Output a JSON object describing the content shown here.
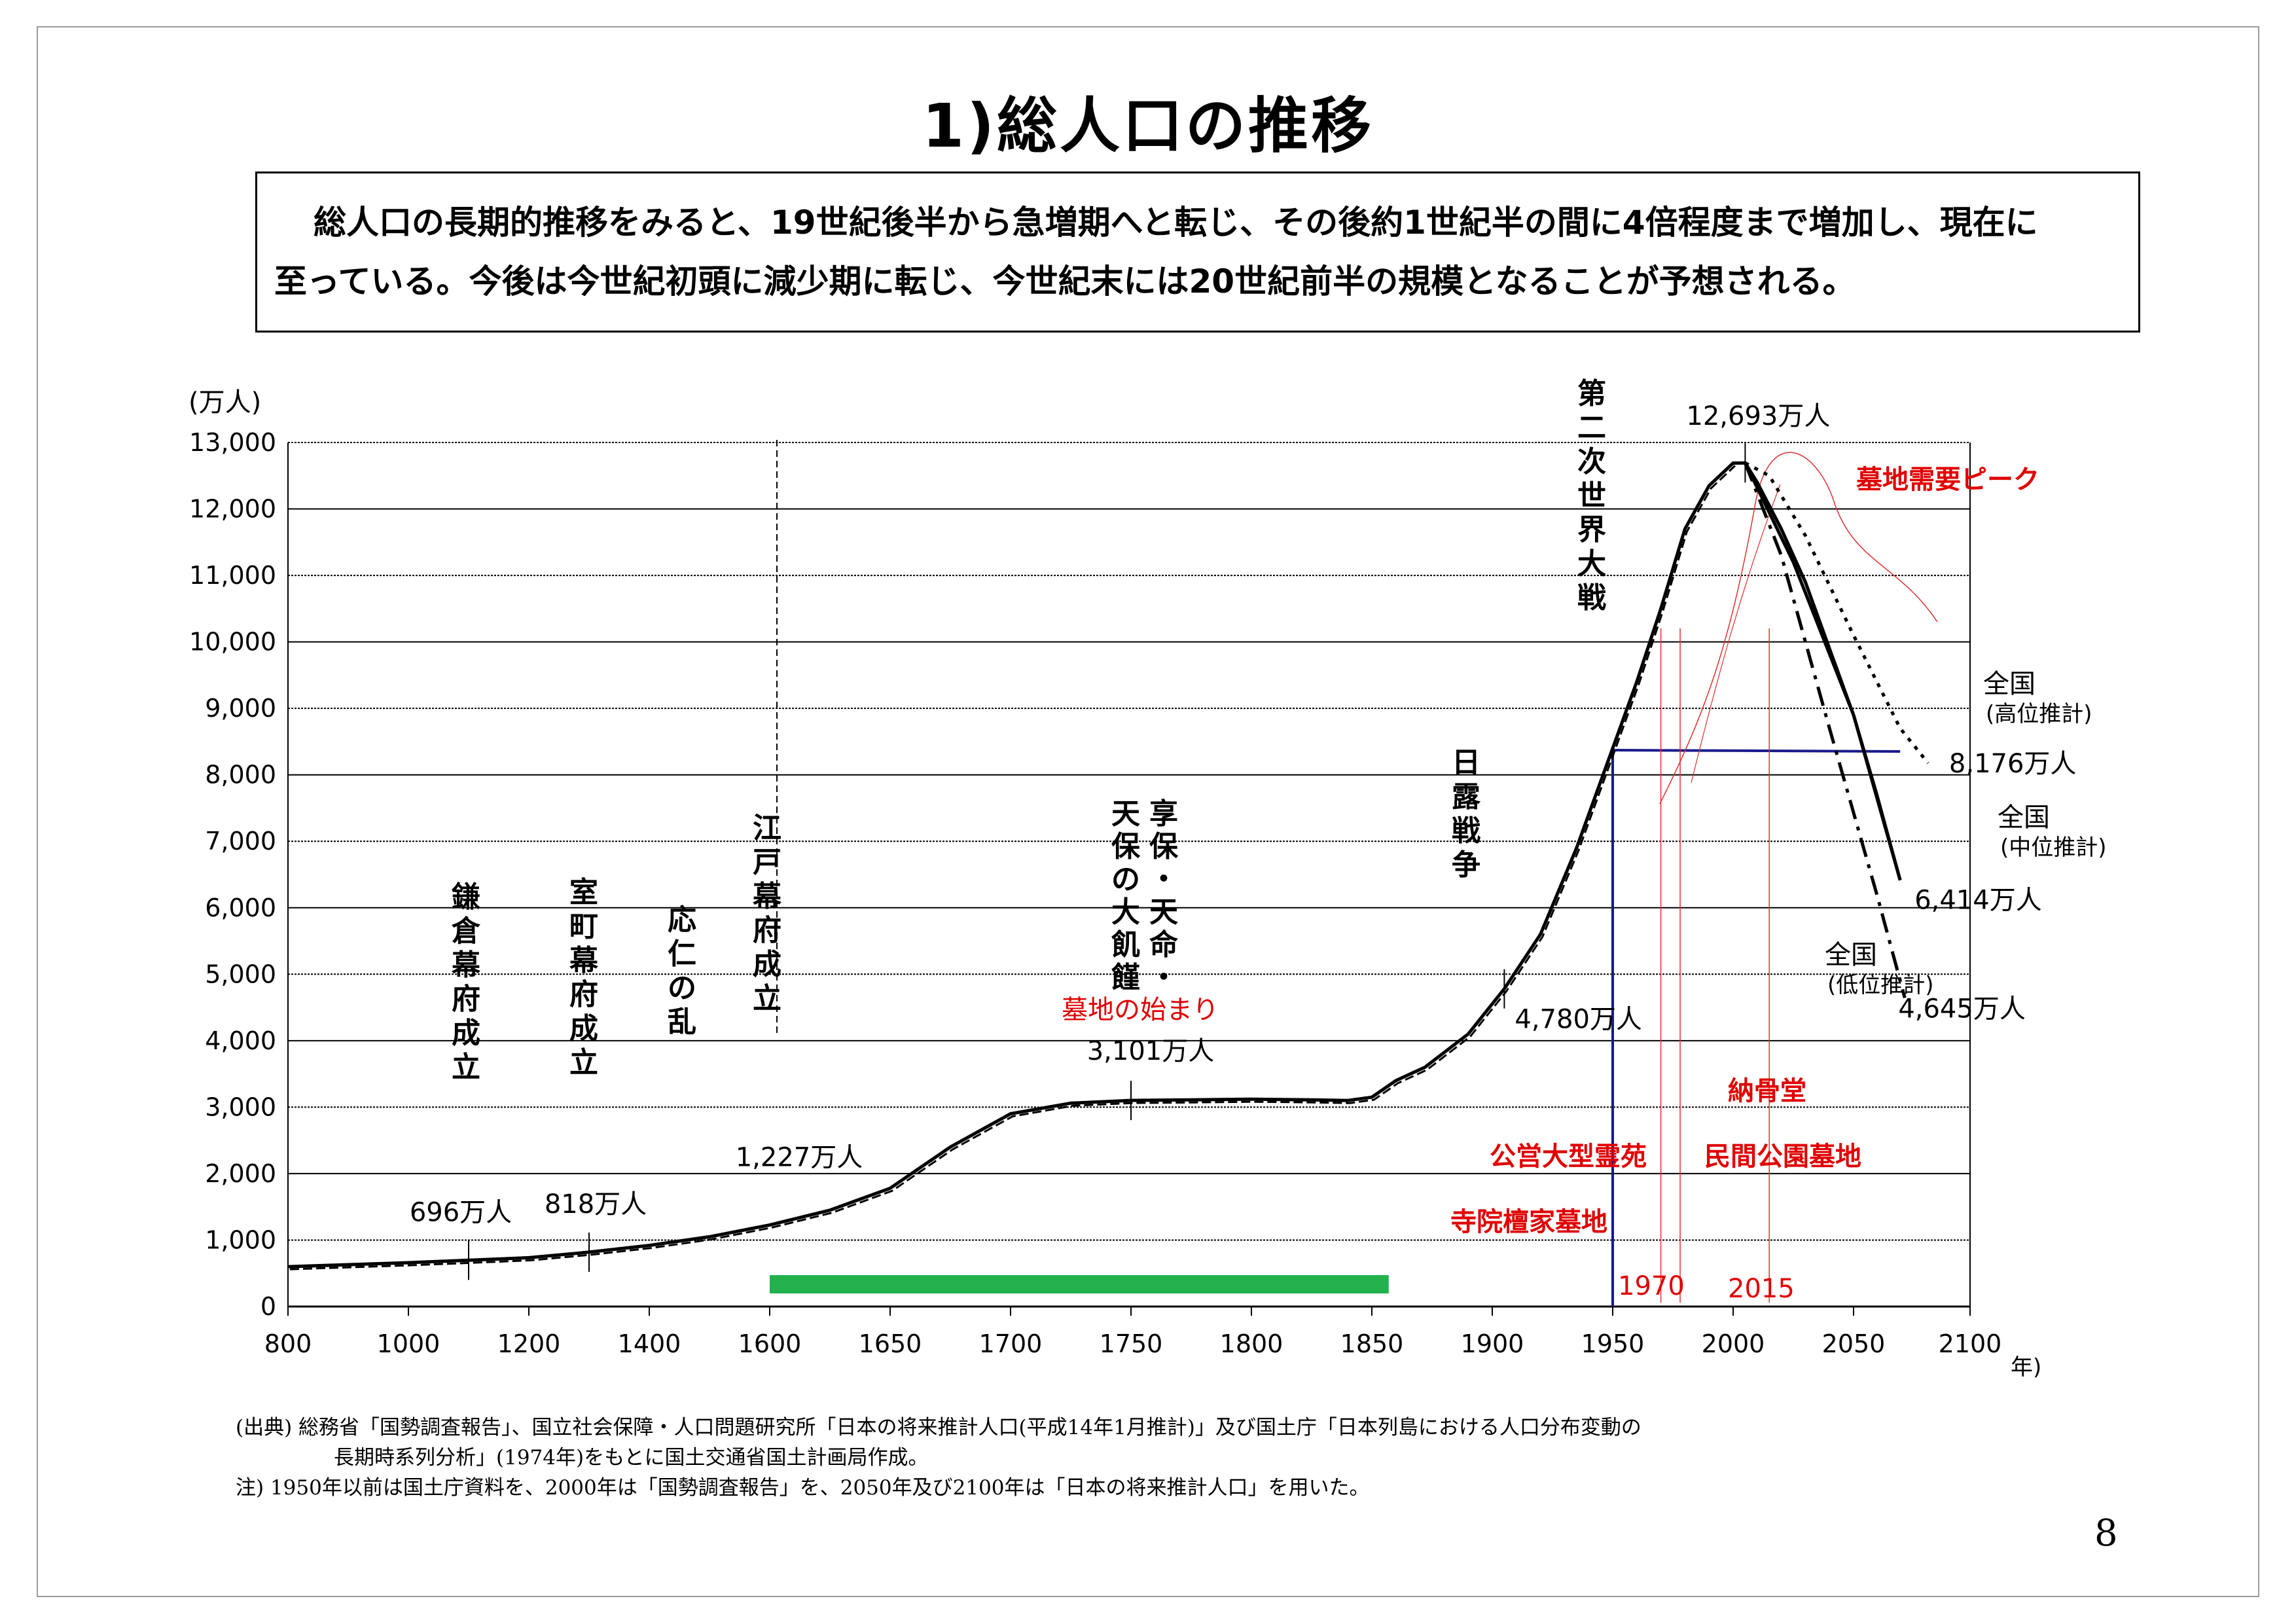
{
  "title": "1)総人口の推移",
  "summary": {
    "line1": "総人口の長期的推移をみると、19世紀後半から急増期へと転じ、その後約1世紀半の間に4倍程度まで増加し、現在に",
    "line2": "至っている。今後は今世紀初頭に減少期に転じ、今世紀末には20世紀前半の規模となることが予想される。"
  },
  "chart_data": {
    "type": "line",
    "ylabel": "(万人)",
    "xlabel": "年)",
    "ylim": [
      0,
      13000
    ],
    "y_ticks": [
      "0",
      "1,000",
      "2,000",
      "3,000",
      "4,000",
      "5,000",
      "6,000",
      "7,000",
      "8,000",
      "9,000",
      "10,000",
      "11,000",
      "12,000",
      "13,000"
    ],
    "x_ticks": [
      "800",
      "1000",
      "1200",
      "1400",
      "1600",
      "1650",
      "1700",
      "1750",
      "1800",
      "1850",
      "1900",
      "1950",
      "2000",
      "2050",
      "2100"
    ],
    "grid": true,
    "series": [
      {
        "values": [
          [
            800,
            600
          ],
          [
            1000,
            660
          ],
          [
            1100,
            696
          ],
          [
            1200,
            735
          ],
          [
            1300,
            818
          ],
          [
            1400,
            920
          ],
          [
            1500,
            1050
          ],
          [
            1600,
            1227
          ],
          [
            1625,
            1450
          ],
          [
            1650,
            1780
          ],
          [
            1675,
            2400
          ],
          [
            1700,
            2900
          ],
          [
            1725,
            3060
          ],
          [
            1750,
            3101
          ],
          [
            1775,
            3110
          ],
          [
            1800,
            3120
          ],
          [
            1825,
            3110
          ],
          [
            1840,
            3100
          ],
          [
            1850,
            3150
          ],
          [
            1860,
            3400
          ],
          [
            1872,
            3600
          ],
          [
            1890,
            4100
          ],
          [
            1905,
            4780
          ],
          [
            1920,
            5600
          ],
          [
            1935,
            6900
          ],
          [
            1945,
            7900
          ],
          [
            1950,
            8400
          ],
          [
            1960,
            9400
          ],
          [
            1970,
            10500
          ],
          [
            1980,
            11700
          ],
          [
            1990,
            12350
          ],
          [
            2000,
            12690
          ],
          [
            2005,
            12693
          ],
          [
            2010,
            12400
          ],
          [
            2020,
            11700
          ],
          [
            2030,
            10900
          ],
          [
            2040,
            9900
          ],
          [
            2050,
            8900
          ],
          [
            2060,
            7700
          ],
          [
            2070,
            6414
          ]
        ]
      },
      {
        "name": "全国(高位推計)",
        "values": [
          [
            2005,
            12693
          ],
          [
            2015,
            12500
          ],
          [
            2030,
            11600
          ],
          [
            2050,
            10100
          ],
          [
            2070,
            8700
          ],
          [
            2082,
            8176
          ]
        ]
      },
      {
        "name": "全国(中位推計)",
        "values": [
          [
            2005,
            12693
          ],
          [
            2025,
            11200
          ],
          [
            2050,
            8900
          ],
          [
            2070,
            6414
          ]
        ]
      },
      {
        "name": "全国(低位推計)",
        "values": [
          [
            2005,
            12693
          ],
          [
            2020,
            11300
          ],
          [
            2040,
            8700
          ],
          [
            2060,
            6200
          ],
          [
            2072,
            4645
          ]
        ]
      }
    ],
    "point_labels": [
      {
        "text": "696万人",
        "x": 1100,
        "y": 696
      },
      {
        "text": "818万人",
        "x": 1300,
        "y": 818
      },
      {
        "text": "1,227万人",
        "x": 1600,
        "y": 1227
      },
      {
        "text": "3,101万人",
        "x": 1750,
        "y": 3101
      },
      {
        "text": "4,780万人",
        "x": 1905,
        "y": 4780
      },
      {
        "text": "12,693万人",
        "x": 2005,
        "y": 12693
      },
      {
        "text": "8,176万人",
        "x": 2082,
        "y": 8176
      },
      {
        "text": "6,414万人",
        "x": 2070,
        "y": 6414
      },
      {
        "text": "4,645万人",
        "x": 2072,
        "y": 4645
      }
    ],
    "events": [
      {
        "text": "鎌倉幕府成立",
        "x": 1192
      },
      {
        "text": "室町幕府成立",
        "x": 1338
      },
      {
        "text": "応仁の乱",
        "x": 1467
      },
      {
        "text": "江戸幕府成立",
        "x": 1603
      },
      {
        "text": "享保・天命・天保の大飢饉",
        "x": 1750
      },
      {
        "text": "日露戦争",
        "x": 1905
      },
      {
        "text": "第二次世界大戦",
        "x": 1945
      }
    ],
    "series_labels": {
      "high": {
        "main": "全国",
        "sub": "(高位推計)"
      },
      "mid": {
        "main": "全国",
        "sub": "(中位推計)"
      },
      "low": {
        "main": "全国",
        "sub": "(低位推計)"
      }
    },
    "annotations": {
      "graves_start": "墓地の始まり",
      "grave_peak": "墓地需要ピーク",
      "ossuary": "納骨堂",
      "public_cemetery": "公営大型霊苑",
      "private_cemetery": "民間公園墓地",
      "temple_cemetery": "寺院檀家墓地",
      "year_1970": "1970",
      "year_2015": "2015"
    },
    "colors": {
      "line": "#000000",
      "annotation": "#e00000",
      "blue_marker": "#1a1a8c",
      "green_bar": "#22b14c",
      "red_thin": "#e03030"
    }
  },
  "footnotes": {
    "source_line1": "(出典) 総務省「国勢調査報告」、国立社会保障・人口問題研究所「日本の将来推計人口(平成14年1月推計)」及び国土庁「日本列島における人口分布変動の",
    "source_line2": "長期時系列分析」(1974年)をもとに国土交通省国土計画局作成。",
    "note": "注) 1950年以前は国土庁資料を、2000年は「国勢調査報告」を、2050年及び2100年は「日本の将来推計人口」を用いた。"
  },
  "page_number": "8"
}
